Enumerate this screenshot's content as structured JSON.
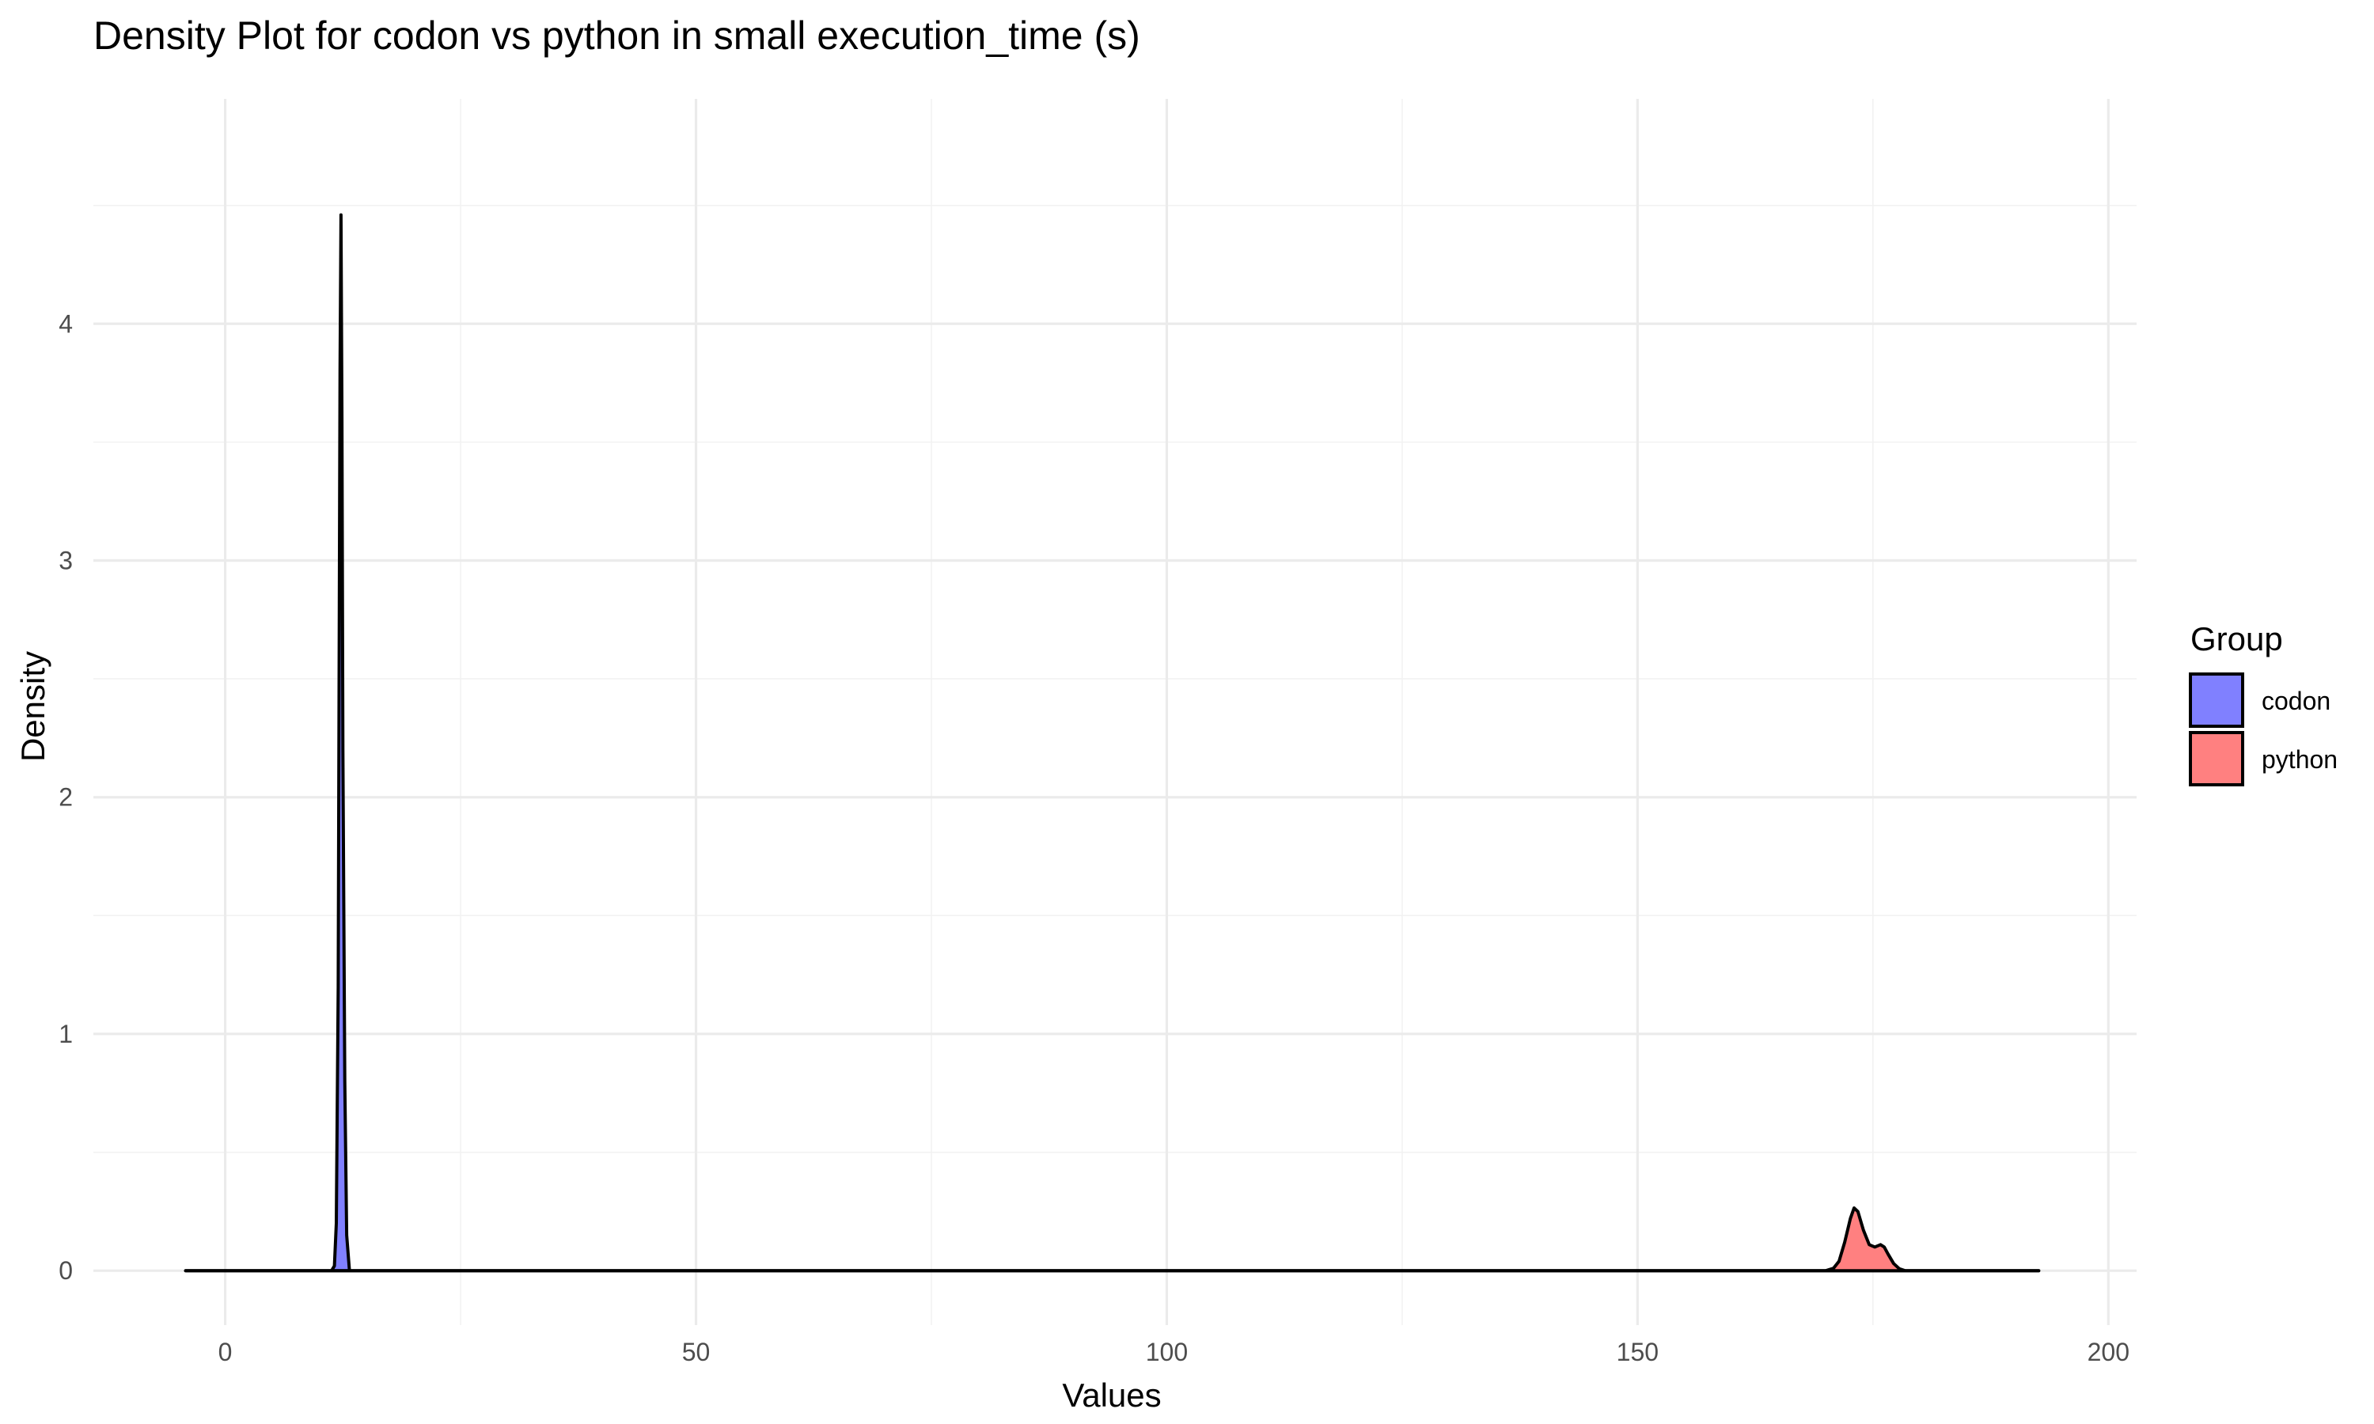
{
  "chart_data": {
    "type": "area",
    "title": "Density Plot for codon vs python in small execution_time (s)",
    "xlabel": "Values",
    "ylabel": "Density",
    "xlim": [
      -14,
      203
    ],
    "ylim": [
      -0.23,
      4.95
    ],
    "x_ticks": [
      0,
      50,
      100,
      150,
      200
    ],
    "x_tick_labels": [
      "0",
      "50",
      "100",
      "150",
      "200"
    ],
    "y_ticks": [
      0,
      1,
      2,
      3,
      4
    ],
    "y_tick_labels": [
      "0",
      "1",
      "2",
      "3",
      "4"
    ],
    "x_minor_ticks": [
      25,
      75,
      125,
      175
    ],
    "y_minor_ticks": [
      0.5,
      1.5,
      2.5,
      3.5,
      4.5
    ],
    "grid": true,
    "legend": {
      "title": "Group",
      "position": "right"
    },
    "series": [
      {
        "name": "codon",
        "color": "#8080FF",
        "x": [
          -4.2,
          11.3,
          11.6,
          11.8,
          12.0,
          12.1,
          12.2,
          12.3,
          12.4,
          12.5,
          12.7,
          12.9,
          13.2,
          192.6
        ],
        "y": [
          0,
          0,
          0.02,
          0.2,
          1.2,
          2.6,
          3.8,
          4.46,
          3.6,
          2.2,
          0.8,
          0.15,
          0,
          0
        ]
      },
      {
        "name": "python",
        "color": "#FF8080",
        "x": [
          -4.2,
          170.0,
          170.8,
          171.4,
          172.0,
          172.6,
          173.0,
          173.4,
          174.0,
          174.6,
          175.2,
          175.8,
          176.2,
          176.6,
          177.2,
          177.8,
          178.4,
          192.6
        ],
        "y": [
          0,
          0,
          0.01,
          0.04,
          0.12,
          0.22,
          0.265,
          0.25,
          0.17,
          0.11,
          0.1,
          0.11,
          0.1,
          0.07,
          0.03,
          0.008,
          0,
          0
        ]
      }
    ]
  }
}
